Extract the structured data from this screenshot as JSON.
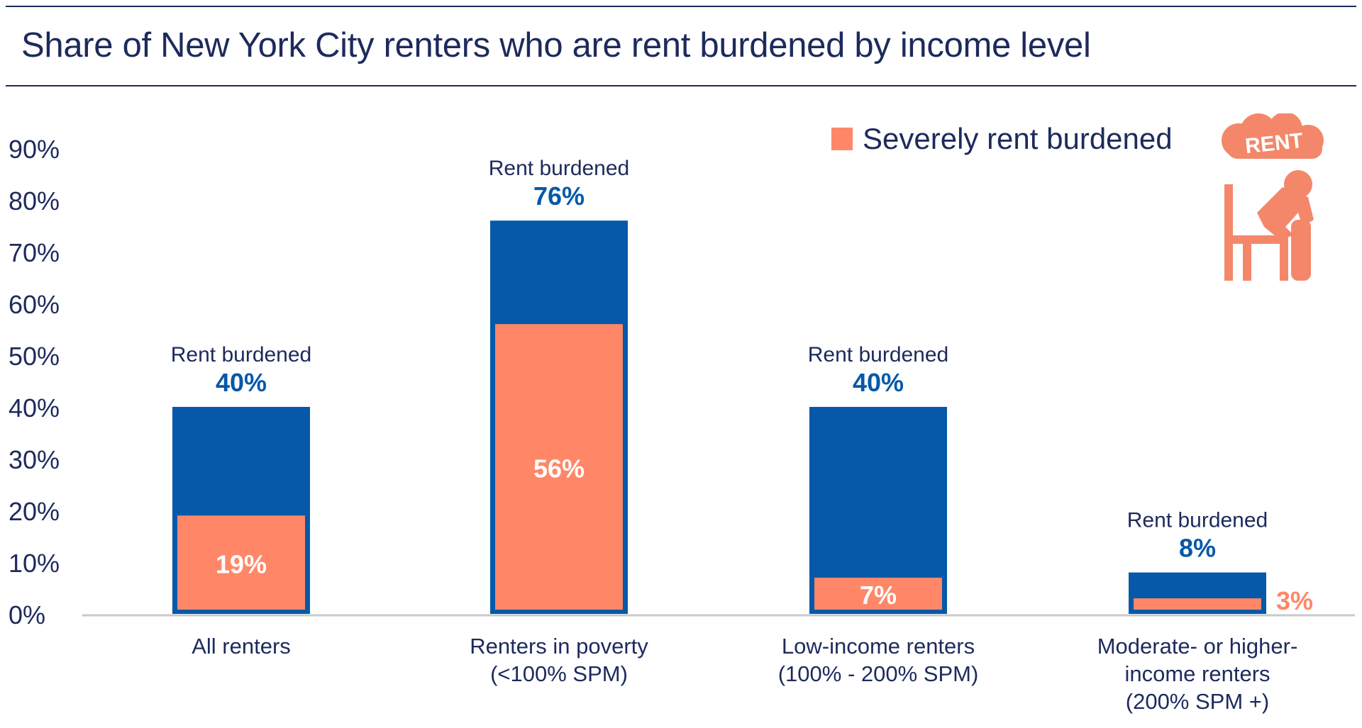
{
  "title": "Share of New York City renters who are rent burdened by income level",
  "legend": {
    "label": "Severely rent burdened",
    "color": "#ff8768"
  },
  "icon": {
    "name": "rent-stress-icon",
    "text": "RENT"
  },
  "colors": {
    "rent_burdened": "#0559a8",
    "severely_rent_burdened": "#ff8768",
    "text": "#1d2a5c"
  },
  "chart_data": {
    "type": "bar",
    "stacked": "overlay",
    "title": "Share of New York City renters who are rent burdened by income level",
    "ylim": [
      0,
      90
    ],
    "yticks": [
      0,
      10,
      20,
      30,
      40,
      50,
      60,
      70,
      80,
      90
    ],
    "ytick_labels": [
      "0%",
      "10%",
      "20%",
      "30%",
      "40%",
      "50%",
      "60%",
      "70%",
      "80%",
      "90%"
    ],
    "grid": false,
    "legend_position": "top-right",
    "categories": [
      [
        "All renters"
      ],
      [
        "Renters in poverty",
        "(<100% SPM)"
      ],
      [
        "Low-income renters",
        "(100% - 200% SPM)"
      ],
      [
        "Moderate- or higher-",
        "income renters",
        "(200% SPM +)"
      ]
    ],
    "series": [
      {
        "name": "Rent burdened",
        "values": [
          40,
          76,
          40,
          8
        ],
        "labels": [
          "40%",
          "76%",
          "40%",
          "8%"
        ]
      },
      {
        "name": "Severely rent burdened",
        "values": [
          19,
          56,
          7,
          3
        ],
        "labels": [
          "19%",
          "56%",
          "7%",
          "3%"
        ]
      }
    ],
    "annotation_prefix": "Rent burdened"
  }
}
